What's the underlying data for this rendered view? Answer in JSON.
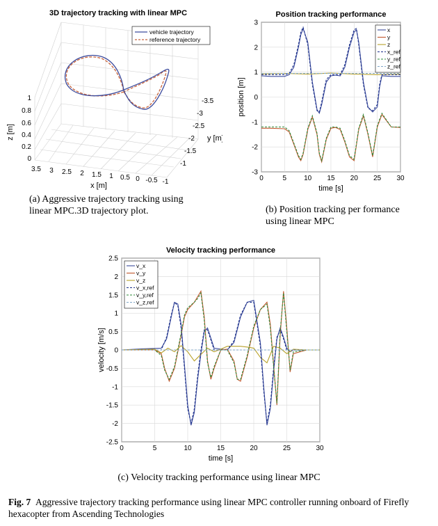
{
  "panels": {
    "a": {
      "title": "3D trajectory tracking with linear MPC",
      "legend": [
        "vehicle trajectory",
        "reference trajectory"
      ],
      "x_label": "x [m]",
      "y_label": "y [m]",
      "z_label": "z [m]",
      "x_ticks": [
        "3.5",
        "3",
        "2.5",
        "2",
        "1.5",
        "1",
        "0.5",
        "0",
        "-0.5",
        "-1"
      ],
      "y_ticks": [
        "-3.5",
        "-3",
        "-2.5",
        "-2",
        "-1.5",
        "-1"
      ],
      "z_ticks": [
        "1",
        "0.8",
        "0.6",
        "0.4",
        "0.2",
        "0"
      ],
      "caption_line1": "(a) Aggressive trajectory tracking using",
      "caption_line2": "linear MPC.3D trajectory plot.",
      "colors": {
        "vehicle": "#3b4a9c",
        "reference": "#c8643c"
      }
    },
    "b": {
      "title": "Position tracking performance",
      "x_label": "time [s]",
      "y_label": "position [m]",
      "caption_line1": "(b) Position tracking per formance",
      "caption_line2": "using linear MPC"
    },
    "c": {
      "title": "Velocity tracking performance",
      "x_label": "time [s]",
      "y_label": "velocity [m/s]",
      "caption": "(c) Velocity tracking performance using linear MPC"
    }
  },
  "figure_caption": {
    "label": "Fig. 7",
    "text": "Aggressive trajectory tracking performance using linear MPC controller running onboard of Firefly hexacopter from Ascending Technologies"
  },
  "chart_data": [
    {
      "id": "position",
      "type": "line",
      "title": "Position tracking performance",
      "xlabel": "time [s]",
      "ylabel": "position [m]",
      "xlim": [
        0,
        30
      ],
      "ylim": [
        -3,
        3
      ],
      "xticks": [
        0,
        5,
        10,
        15,
        20,
        25,
        30
      ],
      "yticks": [
        -3,
        -2,
        -1,
        0,
        1,
        2,
        3
      ],
      "grid": true,
      "legend_position": "top-right",
      "series": [
        {
          "name": "x",
          "color": "#3b4a9c",
          "style": "solid",
          "x": [
            0,
            2,
            5,
            6,
            7,
            8,
            8.5,
            9,
            10,
            11,
            12,
            12.5,
            13,
            14,
            15,
            16,
            17,
            18,
            19,
            20,
            20.5,
            21,
            22,
            23,
            24,
            25,
            25.5,
            26,
            28,
            30
          ],
          "y": [
            0.85,
            0.83,
            0.83,
            0.9,
            1.2,
            2.0,
            2.5,
            2.75,
            2.2,
            0.6,
            -0.5,
            -0.65,
            -0.3,
            0.6,
            0.85,
            0.88,
            0.85,
            1.2,
            2.0,
            2.6,
            2.7,
            2.2,
            0.6,
            -0.4,
            -0.6,
            -0.4,
            0.4,
            0.85,
            0.83,
            0.83
          ]
        },
        {
          "name": "y",
          "color": "#c0572c",
          "style": "solid",
          "x": [
            0,
            2,
            5,
            6,
            7,
            8,
            8.5,
            9,
            10,
            11,
            12,
            12.5,
            13,
            14,
            15,
            16,
            17,
            18,
            19,
            20,
            21,
            22,
            23,
            24,
            25,
            26,
            28,
            30
          ],
          "y": [
            -1.25,
            -1.25,
            -1.27,
            -1.4,
            -1.9,
            -2.4,
            -2.55,
            -2.3,
            -1.3,
            -0.8,
            -1.5,
            -2.3,
            -2.6,
            -1.7,
            -1.25,
            -1.22,
            -1.3,
            -1.8,
            -2.4,
            -2.55,
            -1.3,
            -0.75,
            -1.5,
            -2.4,
            -1.2,
            -0.7,
            -1.2,
            -1.22
          ]
        },
        {
          "name": "z",
          "color": "#b8a12a",
          "style": "solid",
          "x": [
            0,
            5,
            10,
            15,
            20,
            25,
            30
          ],
          "y": [
            0.93,
            0.95,
            0.92,
            0.96,
            0.92,
            0.9,
            0.92
          ]
        },
        {
          "name": "x_ref",
          "color": "#1a2f8a",
          "style": "dashed",
          "x": [
            0,
            2,
            5,
            6,
            7,
            8,
            8.5,
            9,
            10,
            11,
            12,
            12.5,
            13,
            14,
            15,
            16,
            17,
            18,
            19,
            20,
            20.5,
            21,
            22,
            23,
            24,
            25,
            25.5,
            26,
            28,
            30
          ],
          "y": [
            0.9,
            0.9,
            0.9,
            0.95,
            1.3,
            2.1,
            2.6,
            2.8,
            2.1,
            0.5,
            -0.55,
            -0.6,
            -0.2,
            0.7,
            0.9,
            0.9,
            0.9,
            1.3,
            2.1,
            2.7,
            2.75,
            2.1,
            0.5,
            -0.45,
            -0.55,
            -0.3,
            0.5,
            0.9,
            0.9,
            0.9
          ]
        },
        {
          "name": "y_ref",
          "color": "#2e8b3a",
          "style": "dashed",
          "x": [
            0,
            2,
            5,
            6,
            7,
            8,
            8.5,
            9,
            10,
            11,
            12,
            12.5,
            13,
            14,
            15,
            16,
            17,
            18,
            19,
            20,
            21,
            22,
            23,
            24,
            25,
            26,
            28,
            30
          ],
          "y": [
            -1.2,
            -1.2,
            -1.2,
            -1.35,
            -1.85,
            -2.35,
            -2.5,
            -2.25,
            -1.25,
            -0.75,
            -1.45,
            -2.25,
            -2.55,
            -1.65,
            -1.2,
            -1.2,
            -1.25,
            -1.75,
            -2.35,
            -2.5,
            -1.25,
            -0.7,
            -1.45,
            -2.35,
            -1.15,
            -0.65,
            -1.2,
            -1.2
          ]
        },
        {
          "name": "z_ref",
          "color": "#7fa7c9",
          "style": "dashed",
          "x": [
            0,
            30
          ],
          "y": [
            0.95,
            0.95
          ]
        }
      ]
    },
    {
      "id": "velocity",
      "type": "line",
      "title": "Velocity tracking performance",
      "xlabel": "time [s]",
      "ylabel": "velocity [m/s]",
      "xlim": [
        0,
        30
      ],
      "ylim": [
        -2.5,
        2.5
      ],
      "xticks": [
        0,
        5,
        10,
        15,
        20,
        25,
        30
      ],
      "yticks": [
        -2.5,
        -2,
        -1.5,
        -1,
        -0.5,
        0,
        0.5,
        1,
        1.5,
        2,
        2.5
      ],
      "grid": true,
      "legend_position": "top-left",
      "series": [
        {
          "name": "v_x",
          "color": "#3b4a9c",
          "style": "solid",
          "x": [
            0,
            3,
            6,
            6.8,
            7.5,
            8,
            8.5,
            9,
            9.5,
            10,
            10.5,
            11,
            11.5,
            12,
            12.5,
            13,
            14,
            16,
            17,
            18,
            19,
            20,
            21,
            21.5,
            22,
            22.5,
            23,
            23.5,
            24,
            24.5,
            25,
            25.5,
            26,
            28,
            30
          ],
          "y": [
            0,
            0.03,
            0.05,
            0.3,
            0.9,
            1.3,
            1.25,
            0.7,
            -0.4,
            -1.5,
            -2.05,
            -1.7,
            -0.8,
            -0.1,
            0.5,
            0.6,
            0.05,
            0,
            0.2,
            0.9,
            1.3,
            1.35,
            0.2,
            -1.0,
            -2.05,
            -1.6,
            -0.6,
            0.3,
            0.6,
            0.35,
            0.05,
            -0.05,
            0,
            0,
            0
          ]
        },
        {
          "name": "v_y",
          "color": "#c0572c",
          "style": "solid",
          "x": [
            0,
            5,
            6,
            6.5,
            7.2,
            8,
            9,
            9.5,
            10,
            11,
            11.5,
            12,
            12.5,
            13,
            13.5,
            14,
            15,
            16,
            17,
            17.5,
            18,
            19,
            20,
            21,
            22,
            22.5,
            23,
            23.5,
            24,
            24.5,
            25,
            25.5,
            26,
            28,
            30
          ],
          "y": [
            0,
            0,
            -0.1,
            -0.5,
            -0.85,
            -0.5,
            0.4,
            0.9,
            1.1,
            1.3,
            1.45,
            1.6,
            0.9,
            -0.3,
            -0.8,
            -0.5,
            0,
            0.02,
            -0.3,
            -0.8,
            -0.85,
            -0.2,
            0.6,
            1.1,
            1.3,
            0.7,
            -0.4,
            -1.5,
            0.4,
            1.6,
            0.6,
            -0.6,
            -0.1,
            0,
            0
          ]
        },
        {
          "name": "v_z",
          "color": "#b8a12a",
          "style": "solid",
          "x": [
            0,
            5,
            6,
            7,
            8,
            9,
            10,
            11,
            12,
            13,
            14,
            15,
            16,
            17,
            18,
            19,
            20,
            21,
            22,
            23,
            24,
            25,
            26,
            28,
            30
          ],
          "y": [
            0,
            0.02,
            -0.08,
            0.05,
            -0.05,
            0.12,
            -0.05,
            -0.3,
            -0.12,
            0.05,
            -0.05,
            0.02,
            0.1,
            0.1,
            0.1,
            0.08,
            0.05,
            -0.2,
            -0.35,
            0.1,
            0.05,
            -0.1,
            0.02,
            0,
            0
          ]
        },
        {
          "name": "v_x,ref",
          "color": "#1a2f8a",
          "style": "dashed",
          "x": [
            0,
            3,
            6,
            6.8,
            7.5,
            8,
            8.5,
            9,
            9.5,
            10,
            10.5,
            11,
            11.5,
            12,
            12.5,
            13,
            14,
            16,
            17,
            18,
            19,
            20,
            21,
            21.5,
            22,
            22.5,
            23,
            23.5,
            24,
            24.5,
            25,
            25.5,
            26,
            28,
            30
          ],
          "y": [
            0,
            0,
            0,
            0.35,
            0.95,
            1.3,
            1.2,
            0.6,
            -0.5,
            -1.6,
            -2.0,
            -1.6,
            -0.7,
            0,
            0.55,
            0.55,
            0,
            0,
            0.25,
            0.95,
            1.3,
            1.3,
            0.1,
            -1.1,
            -2.0,
            -1.5,
            -0.5,
            0.35,
            0.55,
            0.3,
            0,
            0,
            0,
            0,
            0
          ]
        },
        {
          "name": "v_y,ref",
          "color": "#2e8b3a",
          "style": "dashed",
          "x": [
            0,
            5,
            6,
            6.5,
            7.2,
            8,
            9,
            9.5,
            10,
            11,
            11.5,
            12,
            12.5,
            13,
            13.5,
            14,
            15,
            16,
            17,
            17.5,
            18,
            19,
            20,
            21,
            22,
            22.5,
            23,
            23.5,
            24,
            24.5,
            25,
            25.5,
            26,
            28,
            30
          ],
          "y": [
            0,
            0,
            -0.15,
            -0.55,
            -0.8,
            -0.45,
            0.45,
            0.95,
            1.15,
            1.3,
            1.4,
            1.55,
            0.8,
            -0.35,
            -0.75,
            -0.45,
            0,
            0,
            -0.35,
            -0.8,
            -0.8,
            -0.15,
            0.65,
            1.1,
            1.25,
            0.6,
            -0.45,
            -1.45,
            0.5,
            1.55,
            0.5,
            -0.55,
            -0.05,
            0,
            0
          ]
        },
        {
          "name": "v_z,ref",
          "color": "#7fa7c9",
          "style": "dashed",
          "x": [
            0,
            30
          ],
          "y": [
            0,
            0
          ]
        }
      ]
    }
  ]
}
